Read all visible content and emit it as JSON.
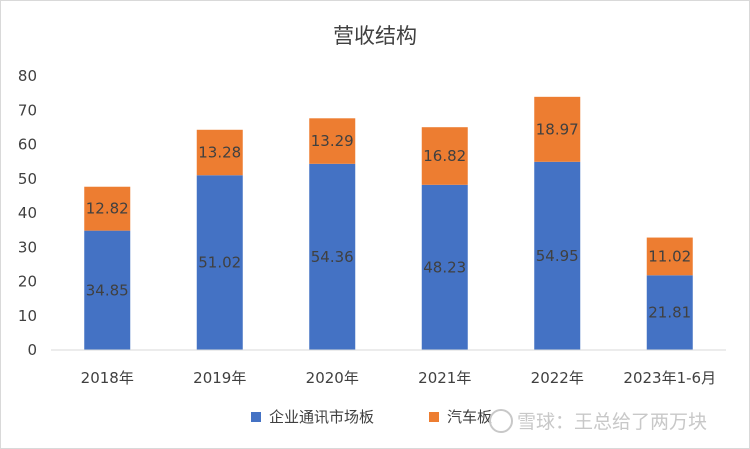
{
  "chart_data": {
    "type": "bar",
    "stacked": true,
    "title": "营收结构",
    "categories": [
      "2018年",
      "2019年",
      "2020年",
      "2021年",
      "2022年",
      "2023年1-6月"
    ],
    "series": [
      {
        "name": "企业通讯市场板",
        "color": "#4472C4",
        "values": [
          34.85,
          51.02,
          54.36,
          48.23,
          54.95,
          21.81
        ]
      },
      {
        "name": "汽车板",
        "color": "#ED7D31",
        "values": [
          12.82,
          13.28,
          13.29,
          16.82,
          18.97,
          11.02
        ]
      }
    ],
    "ylim": [
      0,
      80
    ],
    "yticks": [
      0,
      10,
      20,
      30,
      40,
      50,
      60,
      70,
      80
    ],
    "grid": false,
    "legend": "bottom",
    "data_labels": true
  },
  "watermark": "雪球：王总给了两万块"
}
